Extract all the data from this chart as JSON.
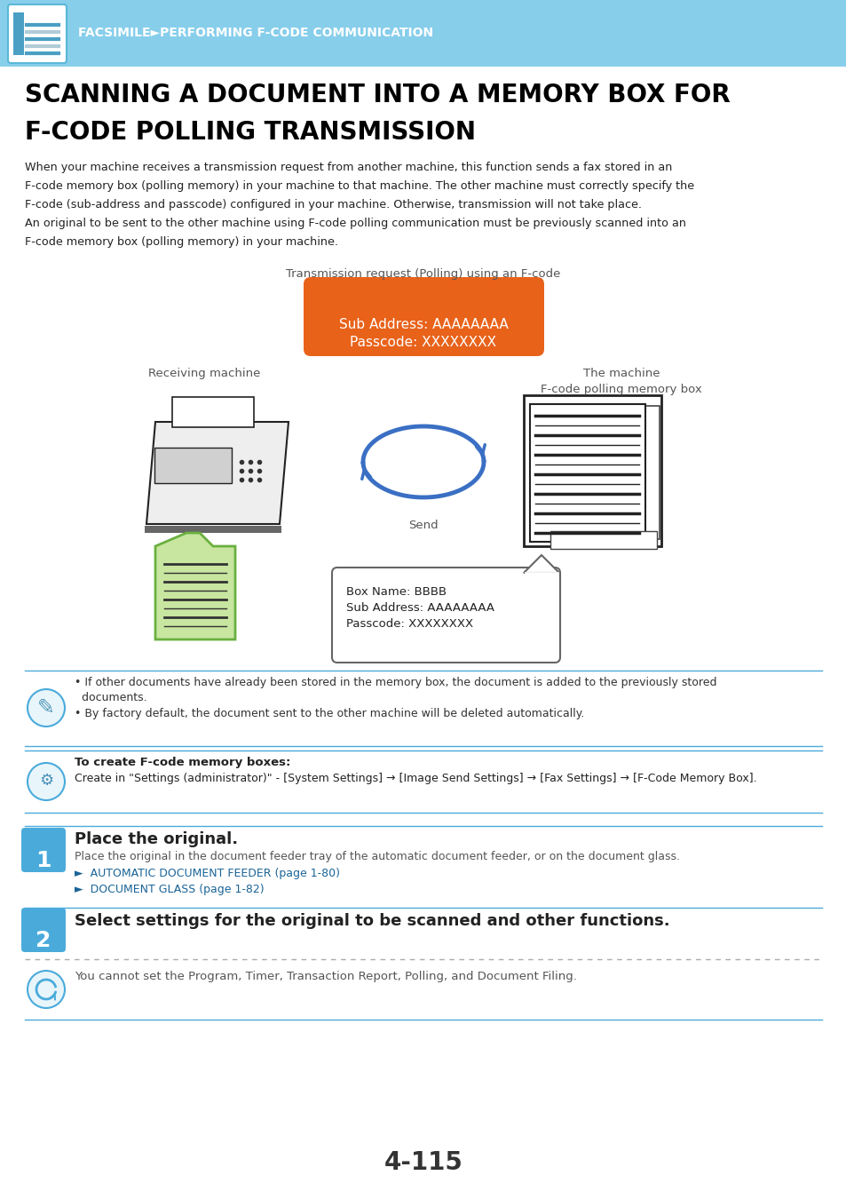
{
  "bg_color": "#ffffff",
  "header_bg": "#87CEEB",
  "header_text": "FACSIMILE►FACSIMILE►PERFORMING F-CODE COMMUNICATION",
  "header_text_clean": "FACSIMILE►PERFORMING F-CODE COMMUNICATION",
  "header_text_color": "#ffffff",
  "title_line1": "SCANNING A DOCUMENT INTO A MEMORY BOX FOR",
  "title_line2": "F-CODE POLLING TRANSMISSION",
  "title_color": "#000000",
  "body_text_lines": [
    "When your machine receives a transmission request from another machine, this function sends a fax stored in an",
    "F-code memory box (polling memory) in your machine to that machine. The other machine must correctly specify the",
    "F-code (sub-address and passcode) configured in your machine. Otherwise, transmission will not take place.",
    "An original to be sent to the other machine using F-code polling communication must be previously scanned into an",
    "F-code memory box (polling memory) in your machine."
  ],
  "diagram_caption": "Transmission request (Polling) using an F-code",
  "orange_box_line1": "Sub Address: AAAAAAAA",
  "orange_box_line2": "Passcode: XXXXXXXX",
  "orange_box_color": "#E8621A",
  "orange_box_text_color": "#ffffff",
  "label_receiving": "Receiving machine",
  "label_machine": "The machine",
  "label_memory_box": "F-code polling memory box",
  "label_send": "Send",
  "info_box_line1": "Box Name: BBBB",
  "info_box_line2": "Sub Address: AAAAAAAA",
  "info_box_line3": "Passcode: XXXXXXXX",
  "note1a": "• If other documents have already been stored in the memory box, the document is added to the previously stored",
  "note1b": "  documents.",
  "note2": "• By factory default, the document sent to the other machine will be deleted automatically.",
  "warning_title": "To create F-code memory boxes:",
  "warning_text": "Create in \"Settings (administrator)\" - [System Settings] → [Image Send Settings] → [Fax Settings] → [F-Code Memory Box].",
  "step1_num": "1",
  "step1_title": "Place the original.",
  "step1_body": "Place the original in the document feeder tray of the automatic document feeder, or on the document glass.",
  "step1_link1": "►  AUTOMATIC DOCUMENT FEEDER (page 1-80)",
  "step1_link2": "►  DOCUMENT GLASS (page 1-82)",
  "step2_num": "2",
  "step2_title": "Select settings for the original to be scanned and other functions.",
  "step2_note": "You cannot set the Program, Timer, Transaction Report, Polling, and Document Filing.",
  "page_number": "4-115",
  "link_color": "#1a6496",
  "step_num_bg": "#4aabdb",
  "step_num_color": "#ffffff",
  "arrow_color": "#3a6fc4",
  "line_color": "#4aabdb",
  "text_dark": "#333333",
  "text_mid": "#555555"
}
